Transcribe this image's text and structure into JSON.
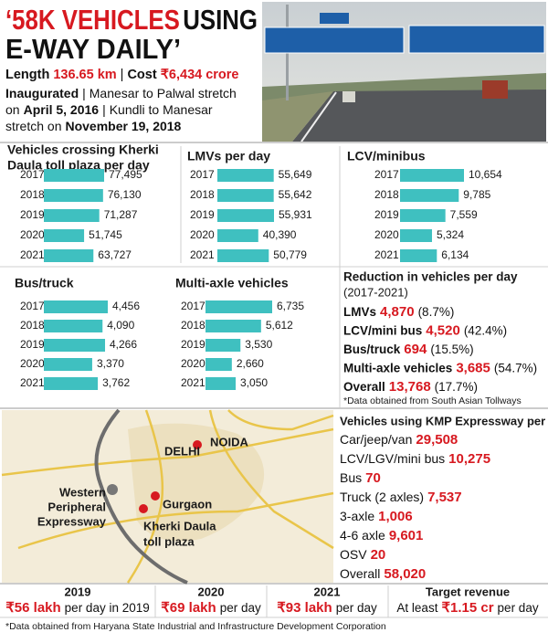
{
  "header": {
    "title_red": "‘58K VEHICLES",
    "title_black": "USING",
    "title_line2": "E-WAY DAILY’",
    "length_label": "Length",
    "length_value": "136.65 km",
    "separator": "|",
    "cost_label": "Cost",
    "cost_value": "₹6,434 crore",
    "inaugurated_label": "Inaugurated",
    "inaugurated_line1": "Manesar to Palwal stretch",
    "inaugurated_line2_pre": "on",
    "inaugurated_date1": "April 5, 2016",
    "inaugurated_line2_post": "Kundli to Manesar",
    "inaugurated_line3_pre": "stretch on",
    "inaugurated_date2": "November 19, 2018"
  },
  "charts": [
    {
      "type": "bar",
      "title": [
        "Vehicles crossing Kherki",
        "Daula toll plaza per day"
      ],
      "categories": [
        "2017",
        "2018",
        "2019",
        "2020",
        "2021"
      ],
      "values": [
        77495,
        76130,
        71287,
        51745,
        63727
      ],
      "value_labels": [
        "77,495",
        "76,130",
        "71,287",
        "51,745",
        "63,727"
      ],
      "color": "#3fc0c0"
    },
    {
      "type": "bar",
      "title": "LMVs per day",
      "categories": [
        "2017",
        "2018",
        "2019",
        "2020",
        "2021"
      ],
      "values": [
        55649,
        55642,
        55931,
        40390,
        50779
      ],
      "value_labels": [
        "55,649",
        "55,642",
        "55,931",
        "40,390",
        "50,779"
      ],
      "color": "#3fc0c0"
    },
    {
      "type": "bar",
      "title": "LCV/minibus",
      "categories": [
        "2017",
        "2018",
        "2019",
        "2020",
        "2021"
      ],
      "values": [
        10654,
        9785,
        7559,
        5324,
        6134
      ],
      "value_labels": [
        "10,654",
        "9,785",
        "7,559",
        "5,324",
        "6,134"
      ],
      "color": "#3fc0c0"
    },
    {
      "type": "bar",
      "title": "Bus/truck",
      "categories": [
        "2017",
        "2018",
        "2019",
        "2020",
        "2021"
      ],
      "values": [
        4456,
        4090,
        4266,
        3370,
        3762
      ],
      "value_labels": [
        "4,456",
        "4,090",
        "4,266",
        "3,370",
        "3,762"
      ],
      "color": "#3fc0c0"
    },
    {
      "type": "bar",
      "title": "Multi-axle vehicles",
      "categories": [
        "2017",
        "2018",
        "2019",
        "2020",
        "2021"
      ],
      "values": [
        6735,
        5612,
        3530,
        2660,
        3050
      ],
      "value_labels": [
        "6,735",
        "5,612",
        "3,530",
        "2,660",
        "3,050"
      ],
      "color": "#3fc0c0"
    }
  ],
  "reduction": {
    "title": "Reduction in vehicles per day",
    "period": "(2017-2021)",
    "items": [
      {
        "label": "LMVs",
        "value": "4,870",
        "pct": "(8.7%)"
      },
      {
        "label": "LCV/mini bus",
        "value": "4,520",
        "pct": "(42.4%)"
      },
      {
        "label": "Bus/truck",
        "value": "694",
        "pct": "(15.5%)"
      },
      {
        "label": "Multi-axle vehicles",
        "value": "3,685",
        "pct": "(54.7%)"
      },
      {
        "label": "Overall",
        "value": "13,768",
        "pct": "(17.7%)"
      }
    ],
    "note": "*Data obtained from South Asian Tollways"
  },
  "map": {
    "delhi": "DELHI",
    "noida": "NOIDA",
    "wpe": [
      "Western",
      "Peripheral",
      "Expressway"
    ],
    "gurgaon": "Gurgaon",
    "kherki": [
      "Kherki Daula",
      "toll plaza"
    ]
  },
  "kmp": {
    "title": "Vehicles using KMP Expressway per day",
    "items": [
      {
        "label": "Car/jeep/van",
        "value": "29,508"
      },
      {
        "label": "LCV/LGV/mini bus",
        "value": "10,275"
      },
      {
        "label": "Bus",
        "value": "70"
      },
      {
        "label": "Truck (2 axles)",
        "value": "7,537"
      },
      {
        "label": "3-axle",
        "value": "1,006"
      },
      {
        "label": "4-6 axle",
        "value": "9,601"
      },
      {
        "label": "OSV",
        "value": "20"
      },
      {
        "label": "Overall",
        "value": "58,020"
      }
    ]
  },
  "revenue": {
    "columns": [
      {
        "heading": "2019",
        "value": "₹56 lakh",
        "rest": "per day in 2019"
      },
      {
        "heading": "2020",
        "value": "₹69 lakh",
        "rest": "per day"
      },
      {
        "heading": "2021",
        "value": "₹93 lakh",
        "rest": "per day"
      },
      {
        "heading": "Target revenue",
        "prefix": "At least",
        "value": "₹1.15 cr",
        "rest": "per day"
      }
    ],
    "note": "*Data obtained from Haryana State Industrial and Infrastructure Development Corporation"
  }
}
